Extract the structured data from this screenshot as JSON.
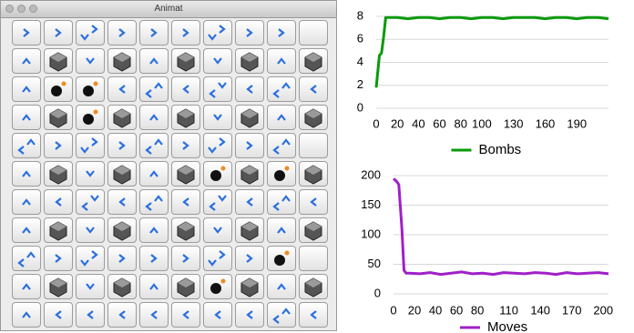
{
  "window": {
    "title": "Animat"
  },
  "chart_data": [
    {
      "type": "line",
      "x": [
        0,
        3,
        5,
        7,
        9,
        12,
        15,
        20,
        30,
        40,
        50,
        60,
        70,
        80,
        90,
        100,
        110,
        120,
        130,
        140,
        150,
        160,
        170,
        180,
        190,
        200,
        210,
        220
      ],
      "series": [
        {
          "name": "Bombs",
          "color": "#0a9a0a",
          "values": [
            1.8,
            4.6,
            4.8,
            6.2,
            7.9,
            7.9,
            7.9,
            7.9,
            7.8,
            7.9,
            7.9,
            7.8,
            7.9,
            7.9,
            7.8,
            7.9,
            7.9,
            7.8,
            7.9,
            7.9,
            7.9,
            7.8,
            7.9,
            7.9,
            7.8,
            7.9,
            7.9,
            7.8
          ]
        }
      ],
      "xlim": [
        0,
        220
      ],
      "ylim": [
        0,
        8.4
      ],
      "xticks": [
        0,
        20,
        40,
        60,
        80,
        100,
        130,
        160,
        190
      ],
      "yticks": [
        0,
        2,
        4,
        6,
        8
      ],
      "grid": true
    },
    {
      "type": "line",
      "x": [
        0,
        3,
        5,
        8,
        10,
        12,
        15,
        25,
        35,
        45,
        55,
        65,
        75,
        85,
        95,
        105,
        115,
        125,
        135,
        145,
        155,
        165,
        175,
        185,
        195,
        205
      ],
      "series": [
        {
          "name": "Moves",
          "color": "#a020c8",
          "values": [
            195,
            190,
            185,
            110,
            40,
            35,
            35,
            34,
            36,
            33,
            35,
            37,
            34,
            35,
            33,
            36,
            35,
            34,
            36,
            35,
            33,
            36,
            34,
            35,
            36,
            34
          ]
        }
      ],
      "xlim": [
        0,
        205
      ],
      "ylim": [
        0,
        210
      ],
      "xticks": [
        0,
        20,
        40,
        60,
        80,
        110,
        140,
        170,
        200
      ],
      "yticks": [
        0,
        50,
        100,
        150,
        200
      ],
      "grid": true
    }
  ]
}
